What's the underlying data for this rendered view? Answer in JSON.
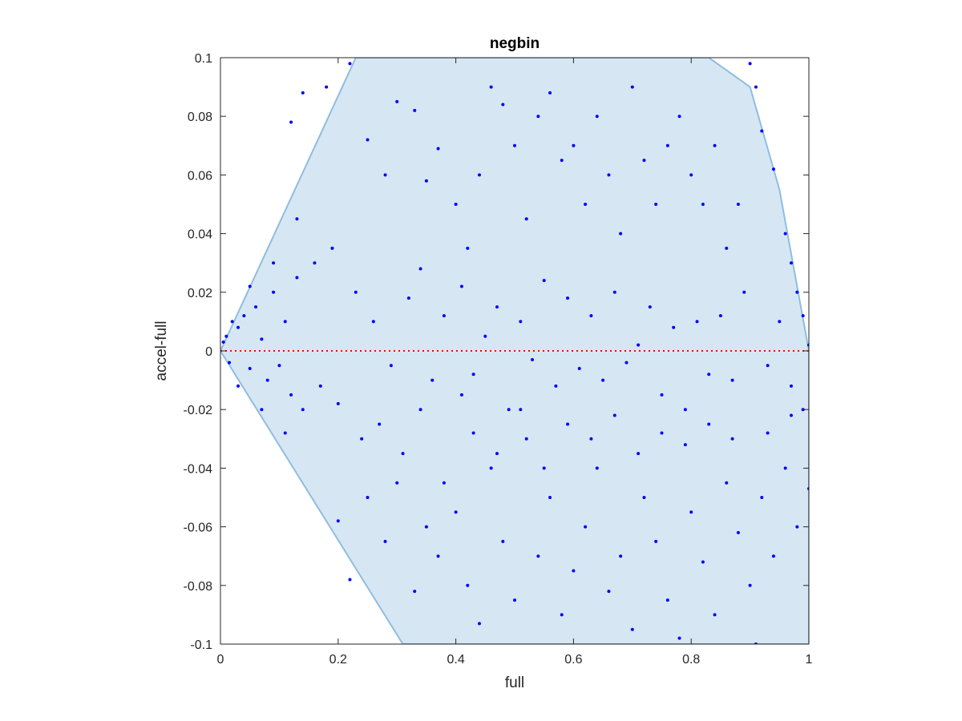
{
  "chart_data": {
    "type": "scatter",
    "title": "negbin",
    "xlabel": "full",
    "ylabel": "accel-full",
    "xlim": [
      0,
      1
    ],
    "ylim": [
      -0.1,
      0.1
    ],
    "xticks": [
      0,
      0.2,
      0.4,
      0.6,
      0.8,
      1
    ],
    "xtick_labels": [
      "0",
      "0.2",
      "0.4",
      "0.6",
      "0.8",
      "1"
    ],
    "yticks": [
      -0.1,
      -0.08,
      -0.06,
      -0.04,
      -0.02,
      0,
      0.02,
      0.04,
      0.06,
      0.08,
      0.1
    ],
    "ytick_labels": [
      "-0.1",
      "-0.08",
      "-0.06",
      "-0.04",
      "-0.02",
      "0",
      "0.02",
      "0.04",
      "0.06",
      "0.08",
      "0.1"
    ],
    "grid": false,
    "colors": {
      "points": "#0000ff",
      "region_fill": "#d6e7f3",
      "region_edge": "#8fbde0",
      "zero_line": "#ff0000"
    },
    "feasible_region": [
      [
        0,
        0
      ],
      [
        0.23,
        0.1
      ],
      [
        0.83,
        0.1
      ],
      [
        0.9,
        0.09
      ],
      [
        0.95,
        0.055
      ],
      [
        1,
        0
      ],
      [
        1,
        -0.1
      ],
      [
        0.31,
        -0.1
      ],
      [
        0,
        0
      ]
    ],
    "reference_line": {
      "y": 0,
      "style": "dotted"
    },
    "points": [
      [
        0.01,
        0.005
      ],
      [
        0.02,
        0.01
      ],
      [
        0.005,
        0.003
      ],
      [
        0.015,
        -0.004
      ],
      [
        0.03,
        0.008
      ],
      [
        0.04,
        0.012
      ],
      [
        0.05,
        -0.006
      ],
      [
        0.06,
        0.015
      ],
      [
        0.07,
        0.004
      ],
      [
        0.08,
        -0.01
      ],
      [
        0.09,
        0.02
      ],
      [
        0.1,
        -0.005
      ],
      [
        0.11,
        0.01
      ],
      [
        0.12,
        -0.015
      ],
      [
        0.13,
        0.025
      ],
      [
        0.14,
        -0.02
      ],
      [
        0.16,
        0.03
      ],
      [
        0.17,
        -0.012
      ],
      [
        0.19,
        0.035
      ],
      [
        0.2,
        -0.018
      ],
      [
        0.03,
        -0.012
      ],
      [
        0.05,
        0.022
      ],
      [
        0.07,
        -0.02
      ],
      [
        0.09,
        0.03
      ],
      [
        0.11,
        -0.028
      ],
      [
        0.13,
        0.045
      ],
      [
        0.12,
        0.078
      ],
      [
        0.14,
        0.088
      ],
      [
        0.18,
        0.09
      ],
      [
        0.22,
        0.098
      ],
      [
        0.25,
        0.072
      ],
      [
        0.28,
        0.06
      ],
      [
        0.3,
        0.085
      ],
      [
        0.33,
        0.082
      ],
      [
        0.35,
        0.058
      ],
      [
        0.37,
        0.069
      ],
      [
        0.4,
        0.05
      ],
      [
        0.42,
        0.035
      ],
      [
        0.44,
        0.06
      ],
      [
        0.46,
        0.09
      ],
      [
        0.48,
        0.084
      ],
      [
        0.5,
        0.07
      ],
      [
        0.52,
        0.045
      ],
      [
        0.54,
        0.08
      ],
      [
        0.56,
        0.088
      ],
      [
        0.58,
        0.065
      ],
      [
        0.6,
        0.07
      ],
      [
        0.62,
        0.05
      ],
      [
        0.64,
        0.08
      ],
      [
        0.66,
        0.06
      ],
      [
        0.68,
        0.04
      ],
      [
        0.7,
        0.09
      ],
      [
        0.72,
        0.065
      ],
      [
        0.74,
        0.05
      ],
      [
        0.76,
        0.07
      ],
      [
        0.78,
        0.08
      ],
      [
        0.8,
        0.06
      ],
      [
        0.82,
        0.05
      ],
      [
        0.84,
        0.07
      ],
      [
        0.86,
        0.035
      ],
      [
        0.88,
        0.05
      ],
      [
        0.9,
        0.098
      ],
      [
        0.91,
        0.09
      ],
      [
        0.92,
        0.075
      ],
      [
        0.94,
        0.062
      ],
      [
        0.96,
        0.04
      ],
      [
        0.97,
        0.03
      ],
      [
        0.98,
        0.02
      ],
      [
        0.99,
        0.012
      ],
      [
        1,
        0.002
      ],
      [
        0.23,
        0.02
      ],
      [
        0.26,
        0.01
      ],
      [
        0.29,
        -0.005
      ],
      [
        0.32,
        0.018
      ],
      [
        0.34,
        0.028
      ],
      [
        0.36,
        -0.01
      ],
      [
        0.38,
        0.012
      ],
      [
        0.41,
        0.022
      ],
      [
        0.43,
        -0.008
      ],
      [
        0.45,
        0.005
      ],
      [
        0.47,
        0.015
      ],
      [
        0.49,
        -0.02
      ],
      [
        0.51,
        0.01
      ],
      [
        0.53,
        -0.003
      ],
      [
        0.55,
        0.024
      ],
      [
        0.57,
        -0.012
      ],
      [
        0.59,
        0.018
      ],
      [
        0.61,
        -0.006
      ],
      [
        0.63,
        0.012
      ],
      [
        0.65,
        -0.01
      ],
      [
        0.67,
        0.02
      ],
      [
        0.69,
        -0.004
      ],
      [
        0.71,
        0.002
      ],
      [
        0.73,
        0.015
      ],
      [
        0.75,
        -0.015
      ],
      [
        0.77,
        0.008
      ],
      [
        0.79,
        -0.02
      ],
      [
        0.81,
        0.01
      ],
      [
        0.83,
        -0.008
      ],
      [
        0.85,
        0.012
      ],
      [
        0.87,
        -0.01
      ],
      [
        0.89,
        0.02
      ],
      [
        0.93,
        -0.005
      ],
      [
        0.95,
        0.01
      ],
      [
        0.97,
        -0.012
      ],
      [
        0.99,
        -0.02
      ],
      [
        0.2,
        -0.058
      ],
      [
        0.22,
        -0.078
      ],
      [
        0.25,
        -0.05
      ],
      [
        0.28,
        -0.065
      ],
      [
        0.3,
        -0.045
      ],
      [
        0.33,
        -0.082
      ],
      [
        0.35,
        -0.06
      ],
      [
        0.37,
        -0.07
      ],
      [
        0.4,
        -0.055
      ],
      [
        0.42,
        -0.08
      ],
      [
        0.44,
        -0.093
      ],
      [
        0.46,
        -0.04
      ],
      [
        0.48,
        -0.065
      ],
      [
        0.5,
        -0.085
      ],
      [
        0.52,
        -0.03
      ],
      [
        0.54,
        -0.07
      ],
      [
        0.56,
        -0.05
      ],
      [
        0.58,
        -0.09
      ],
      [
        0.6,
        -0.075
      ],
      [
        0.62,
        -0.06
      ],
      [
        0.64,
        -0.04
      ],
      [
        0.66,
        -0.082
      ],
      [
        0.68,
        -0.07
      ],
      [
        0.7,
        -0.095
      ],
      [
        0.72,
        -0.05
      ],
      [
        0.74,
        -0.065
      ],
      [
        0.76,
        -0.085
      ],
      [
        0.78,
        -0.098
      ],
      [
        0.8,
        -0.055
      ],
      [
        0.82,
        -0.072
      ],
      [
        0.84,
        -0.09
      ],
      [
        0.86,
        -0.045
      ],
      [
        0.88,
        -0.062
      ],
      [
        0.9,
        -0.08
      ],
      [
        0.92,
        -0.05
      ],
      [
        0.94,
        -0.07
      ],
      [
        0.96,
        -0.04
      ],
      [
        0.98,
        -0.06
      ],
      [
        1,
        -0.047
      ],
      [
        0.91,
        -0.1
      ],
      [
        0.24,
        -0.03
      ],
      [
        0.27,
        -0.025
      ],
      [
        0.31,
        -0.035
      ],
      [
        0.34,
        -0.02
      ],
      [
        0.38,
        -0.045
      ],
      [
        0.41,
        -0.015
      ],
      [
        0.43,
        -0.028
      ],
      [
        0.47,
        -0.035
      ],
      [
        0.51,
        -0.02
      ],
      [
        0.55,
        -0.04
      ],
      [
        0.59,
        -0.025
      ],
      [
        0.63,
        -0.03
      ],
      [
        0.67,
        -0.022
      ],
      [
        0.71,
        -0.035
      ],
      [
        0.75,
        -0.028
      ],
      [
        0.79,
        -0.032
      ],
      [
        0.83,
        -0.025
      ],
      [
        0.87,
        -0.03
      ],
      [
        0.93,
        -0.028
      ],
      [
        0.97,
        -0.022
      ]
    ]
  }
}
